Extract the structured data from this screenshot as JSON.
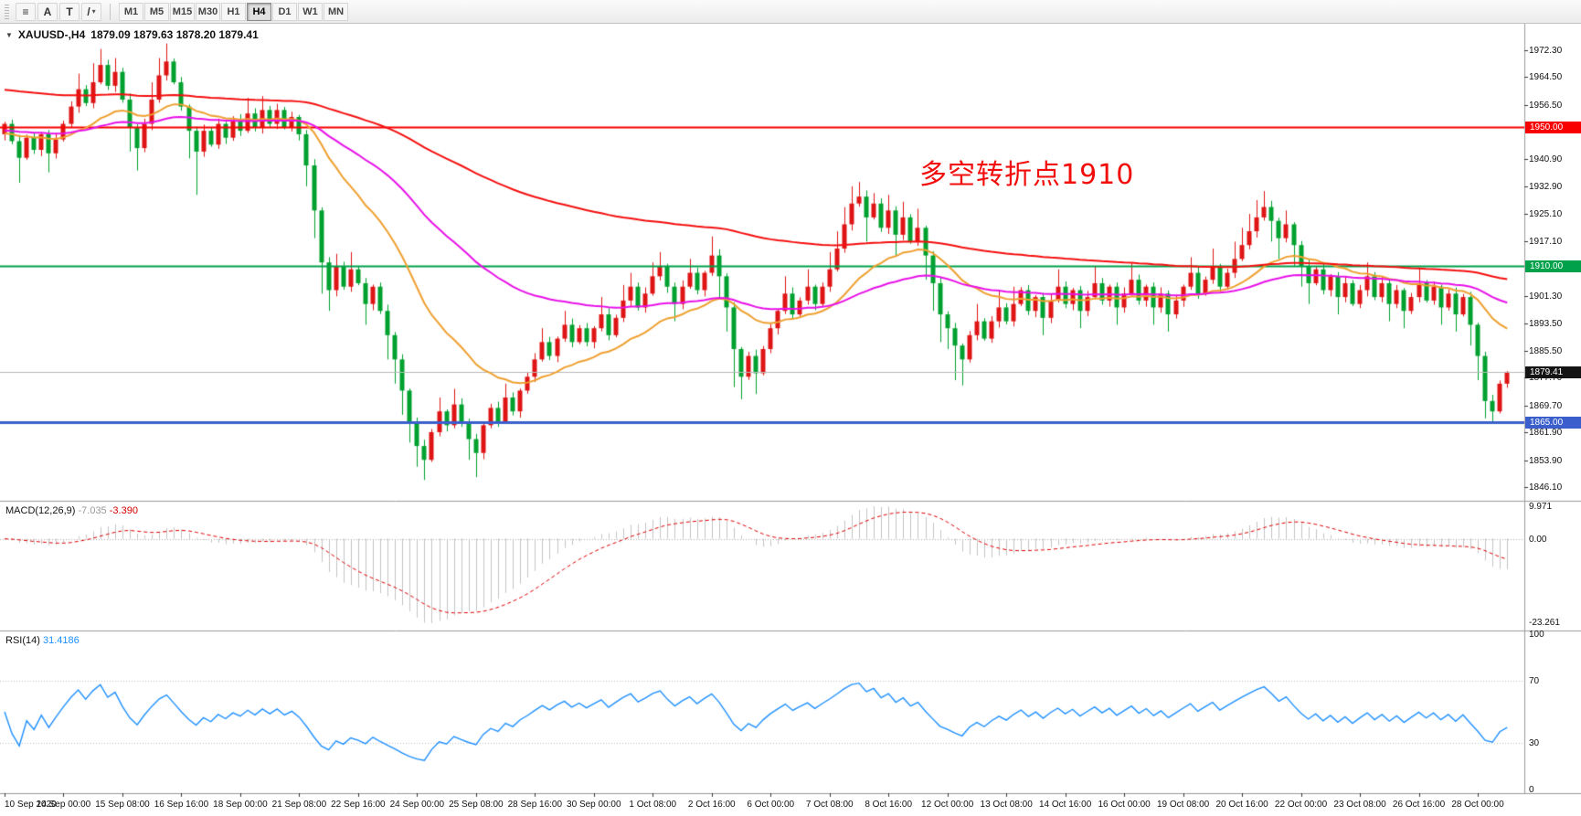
{
  "toolbar": {
    "tools": [
      {
        "id": "chart-list",
        "glyph": "≡"
      },
      {
        "id": "cursor-tool",
        "glyph": "A"
      },
      {
        "id": "text-tool",
        "glyph": "T"
      },
      {
        "id": "line-tools",
        "glyph": "/",
        "dropdown": true
      }
    ],
    "periods": [
      "M1",
      "M5",
      "M15",
      "M30",
      "H1",
      "H4",
      "D1",
      "W1",
      "MN"
    ],
    "active_period": "H4"
  },
  "symbol_header": {
    "dropdown_glyph": "▼",
    "title": "XAUUSD-,H4",
    "ohlc": "1879.09 1879.63 1878.20 1879.41"
  },
  "annotation": {
    "text": "多空转折点1910",
    "color": "#F20D0D"
  },
  "colors": {
    "bull": "#DF1414",
    "bear": "#00A12E",
    "bid_line": "#B9B9B9",
    "axis_text": "#111111",
    "separator": "#9A9A9A"
  },
  "chart_data": {
    "type": "candlestick",
    "symbol": "XAUUSD-",
    "timeframe": "H4",
    "price_range": {
      "top": 1979.9,
      "bottom": 1842.2
    },
    "first_open": 1948,
    "closes": [
      1951,
      1946,
      1941.2,
      1947,
      1943.5,
      1948,
      1942.5,
      1946.5,
      1951,
      1956,
      1961,
      1957,
      1963,
      1968,
      1962,
      1966,
      1958,
      1950,
      1944,
      1951,
      1958,
      1965,
      1969,
      1963,
      1956,
      1949,
      1943,
      1949,
      1945,
      1951,
      1947,
      1952,
      1949,
      1954,
      1950,
      1955,
      1951,
      1955,
      1950,
      1953,
      1948,
      1939,
      1926,
      1911,
      1903,
      1910,
      1904,
      1909,
      1905,
      1899,
      1904,
      1897,
      1890,
      1883,
      1874,
      1865,
      1858,
      1854,
      1862,
      1868,
      1864,
      1870,
      1865,
      1860,
      1856,
      1864,
      1869,
      1865,
      1872,
      1868,
      1874,
      1878,
      1883,
      1888,
      1884,
      1889,
      1893,
      1888,
      1892,
      1888,
      1892,
      1896,
      1890,
      1895,
      1900,
      1904,
      1898,
      1902,
      1907,
      1910,
      1904,
      1899,
      1904,
      1908,
      1903,
      1908,
      1913,
      1907,
      1898,
      1886,
      1878,
      1884,
      1879,
      1886,
      1892,
      1897,
      1902,
      1896,
      1900,
      1904,
      1899,
      1904,
      1909,
      1915,
      1922,
      1928,
      1930,
      1924,
      1928,
      1921,
      1926,
      1919,
      1924,
      1917,
      1921,
      1913,
      1905,
      1896,
      1892,
      1887,
      1883,
      1890,
      1894,
      1889,
      1894,
      1898,
      1894,
      1899,
      1903,
      1897,
      1901,
      1895,
      1900,
      1904,
      1899,
      1903,
      1897,
      1901,
      1905,
      1900,
      1904,
      1898,
      1902,
      1906,
      1900,
      1904,
      1898,
      1902,
      1896,
      1900,
      1904,
      1908,
      1902,
      1906,
      1910,
      1904,
      1908,
      1912,
      1916,
      1920,
      1924,
      1927,
      1923,
      1918,
      1922,
      1916,
      1910,
      1905,
      1909,
      1903,
      1907,
      1901,
      1905,
      1899,
      1903,
      1907,
      1901,
      1905,
      1899,
      1903,
      1897,
      1901,
      1905,
      1900,
      1904,
      1898,
      1902,
      1896,
      1901,
      1893,
      1884,
      1871,
      1868,
      1876,
      1879.41
    ],
    "wick_highs": {
      "10": 1965.5,
      "12": 1968.5,
      "13": 1972.6,
      "15": 1970,
      "20": 1963,
      "21": 1970,
      "22": 1974.2,
      "33": 1958.5,
      "35": 1959,
      "45": 1913.5,
      "47": 1914,
      "59": 1872,
      "61": 1874.5,
      "68": 1876,
      "73": 1892,
      "76": 1897,
      "81": 1901,
      "84": 1904.5,
      "85": 1908,
      "88": 1911,
      "89": 1914,
      "93": 1912,
      "96": 1918.5,
      "106": 1907,
      "109": 1909,
      "112": 1914,
      "113": 1920,
      "114": 1927,
      "115": 1933,
      "116": 1934.2,
      "118": 1931,
      "120": 1930.5,
      "122": 1928.5,
      "124": 1926.5,
      "132": 1899,
      "135": 1903,
      "137": 1904,
      "143": 1909,
      "148": 1910,
      "153": 1911,
      "161": 1912.5,
      "164": 1915,
      "167": 1917,
      "168": 1921,
      "169": 1925,
      "170": 1929,
      "171": 1931.6,
      "174": 1926,
      "185": 1911,
      "192": 1909.5,
      "204": 1879.63
    },
    "wick_lows": {
      "2": 1934,
      "6": 1937,
      "17": 1943,
      "18": 1937.5,
      "25": 1941,
      "26": 1930.5,
      "41": 1933,
      "42": 1918,
      "43": 1902,
      "44": 1897,
      "49": 1893,
      "52": 1883,
      "53": 1876,
      "54": 1867,
      "55": 1859,
      "56": 1852,
      "57": 1848.2,
      "63": 1854,
      "64": 1849,
      "91": 1894,
      "97": 1901,
      "98": 1891,
      "99": 1875,
      "100": 1871.5,
      "102": 1873,
      "117": 1917,
      "121": 1913,
      "125": 1906,
      "126": 1897,
      "127": 1888,
      "128": 1886,
      "129": 1877,
      "130": 1875.5,
      "141": 1890,
      "146": 1892,
      "151": 1893,
      "156": 1893,
      "158": 1891,
      "172": 1917,
      "173": 1912,
      "175": 1910,
      "176": 1904,
      "177": 1899,
      "181": 1896,
      "188": 1894,
      "190": 1892,
      "195": 1893,
      "197": 1891,
      "199": 1887,
      "200": 1877,
      "201": 1866,
      "202": 1864.8
    },
    "label_step": 8,
    "time_labels": [
      "10 Sep 2020",
      "14 Sep 00:00",
      "15 Sep 08:00",
      "16 Sep 16:00",
      "18 Sep 00:00",
      "21 Sep 08:00",
      "22 Sep 16:00",
      "24 Sep 00:00",
      "25 Sep 08:00",
      "28 Sep 16:00",
      "30 Sep 00:00",
      "1 Oct 08:00",
      "2 Oct 16:00",
      "6 Oct 00:00",
      "7 Oct 08:00",
      "8 Oct 16:00",
      "12 Oct 00:00",
      "13 Oct 08:00",
      "14 Oct 16:00",
      "16 Oct 00:00",
      "19 Oct 08:00",
      "20 Oct 16:00",
      "22 Oct 00:00",
      "23 Oct 08:00",
      "26 Oct 16:00",
      "28 Oct 00:00"
    ],
    "price_axis_labels": [
      1972.3,
      1964.5,
      1956.5,
      1940.9,
      1932.9,
      1925.1,
      1917.1,
      1901.3,
      1893.5,
      1885.5,
      1877.7,
      1869.7,
      1861.9,
      1853.9,
      1846.1
    ],
    "price_lines": [
      {
        "price": 1950.0,
        "label": "1950.00",
        "color": "#F80000",
        "width": 2
      },
      {
        "price": 1910.0,
        "label": "1910.00",
        "color": "#00A14B",
        "width": 2
      },
      {
        "price": 1865.0,
        "label": "1865.00",
        "color": "#3A5FCD",
        "width": 3
      },
      {
        "price": 1879.41,
        "label": "1879.41",
        "color": "#B9B9B9",
        "width": 1,
        "badge_bg": "#141414"
      }
    ],
    "moving_averages": [
      {
        "period": 21,
        "color": "#EFA030",
        "width": 2,
        "seed": 1948
      },
      {
        "period": 56,
        "color": "#E812E8",
        "width": 2,
        "seed": 1949
      },
      {
        "period": 144,
        "color": "#F50F0F",
        "width": 2,
        "seed": 1961
      }
    ],
    "macd": {
      "label": "MACD(12,26,9)",
      "value_main": "-7.035",
      "value_signal": "-3.390",
      "fast": 12,
      "slow": 26,
      "signal": 9,
      "axis_labels": {
        "max": "9.971",
        "zero": "0.00",
        "min": "-23.261"
      },
      "histogram_color": "#C4C4C4",
      "signal_color": "#E00000"
    },
    "rsi": {
      "label": "RSI(14)",
      "value": "31.4186",
      "period": 14,
      "levels": [
        100,
        70,
        30,
        0
      ],
      "line_color": "#1E90FF",
      "level_line_color": "#C0C0C0"
    }
  }
}
